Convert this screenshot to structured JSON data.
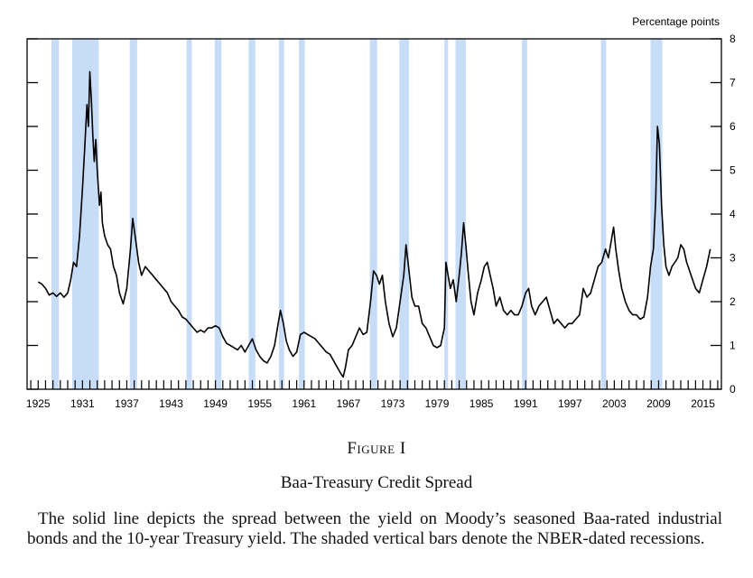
{
  "chart_data": {
    "type": "line",
    "ylabel": "Percentage points",
    "ylim": [
      0,
      8
    ],
    "yticks": [
      0,
      1,
      2,
      3,
      4,
      5,
      6,
      7,
      8
    ],
    "xlim": [
      1923.5,
      2017.5
    ],
    "xticks": [
      1925,
      1931,
      1937,
      1943,
      1949,
      1955,
      1961,
      1967,
      1973,
      1979,
      1985,
      1991,
      1997,
      2003,
      2009,
      2015
    ],
    "recession_color": "#c6dcf7",
    "line_color": "#000000",
    "recessions": [
      [
        1926.8,
        1927.8
      ],
      [
        1929.6,
        1933.2
      ],
      [
        1937.4,
        1938.4
      ],
      [
        1945.1,
        1945.8
      ],
      [
        1948.9,
        1949.8
      ],
      [
        1953.5,
        1954.4
      ],
      [
        1957.6,
        1958.3
      ],
      [
        1960.3,
        1961.1
      ],
      [
        1969.9,
        1970.9
      ],
      [
        1973.9,
        1975.2
      ],
      [
        1980.0,
        1980.5
      ],
      [
        1981.5,
        1982.9
      ],
      [
        1990.5,
        1991.2
      ],
      [
        2001.2,
        2001.9
      ],
      [
        2007.9,
        2009.5
      ]
    ],
    "series": [
      {
        "values": [
          [
            1925.0,
            2.45
          ],
          [
            1925.5,
            2.4
          ],
          [
            1926.0,
            2.3
          ],
          [
            1926.5,
            2.15
          ],
          [
            1927.0,
            2.2
          ],
          [
            1927.5,
            2.12
          ],
          [
            1928.0,
            2.2
          ],
          [
            1928.5,
            2.1
          ],
          [
            1929.0,
            2.2
          ],
          [
            1929.4,
            2.5
          ],
          [
            1929.8,
            2.9
          ],
          [
            1930.2,
            2.8
          ],
          [
            1930.6,
            3.5
          ],
          [
            1931.0,
            4.6
          ],
          [
            1931.3,
            5.5
          ],
          [
            1931.6,
            6.5
          ],
          [
            1931.8,
            6.0
          ],
          [
            1932.0,
            7.25
          ],
          [
            1932.2,
            6.6
          ],
          [
            1932.4,
            5.8
          ],
          [
            1932.6,
            5.2
          ],
          [
            1932.8,
            5.7
          ],
          [
            1933.0,
            5.0
          ],
          [
            1933.3,
            4.2
          ],
          [
            1933.5,
            4.5
          ],
          [
            1933.7,
            3.8
          ],
          [
            1934.0,
            3.5
          ],
          [
            1934.4,
            3.3
          ],
          [
            1934.8,
            3.2
          ],
          [
            1935.2,
            2.8
          ],
          [
            1935.6,
            2.6
          ],
          [
            1936.0,
            2.2
          ],
          [
            1936.5,
            1.95
          ],
          [
            1937.0,
            2.3
          ],
          [
            1937.5,
            3.2
          ],
          [
            1937.8,
            3.9
          ],
          [
            1938.2,
            3.4
          ],
          [
            1938.6,
            2.9
          ],
          [
            1939.0,
            2.6
          ],
          [
            1939.5,
            2.8
          ],
          [
            1940.0,
            2.7
          ],
          [
            1940.5,
            2.6
          ],
          [
            1941.0,
            2.5
          ],
          [
            1941.5,
            2.4
          ],
          [
            1942.0,
            2.3
          ],
          [
            1942.5,
            2.2
          ],
          [
            1943.0,
            2.0
          ],
          [
            1943.5,
            1.9
          ],
          [
            1944.0,
            1.8
          ],
          [
            1944.5,
            1.65
          ],
          [
            1945.0,
            1.6
          ],
          [
            1945.5,
            1.5
          ],
          [
            1946.0,
            1.4
          ],
          [
            1946.5,
            1.3
          ],
          [
            1947.0,
            1.35
          ],
          [
            1947.5,
            1.3
          ],
          [
            1948.0,
            1.4
          ],
          [
            1948.5,
            1.4
          ],
          [
            1949.0,
            1.45
          ],
          [
            1949.5,
            1.4
          ],
          [
            1950.0,
            1.2
          ],
          [
            1950.5,
            1.05
          ],
          [
            1951.0,
            1.0
          ],
          [
            1951.5,
            0.95
          ],
          [
            1952.0,
            0.9
          ],
          [
            1952.5,
            1.0
          ],
          [
            1953.0,
            0.85
          ],
          [
            1953.5,
            1.0
          ],
          [
            1954.0,
            1.15
          ],
          [
            1954.5,
            0.9
          ],
          [
            1955.0,
            0.75
          ],
          [
            1955.5,
            0.65
          ],
          [
            1956.0,
            0.6
          ],
          [
            1956.5,
            0.75
          ],
          [
            1957.0,
            1.0
          ],
          [
            1957.5,
            1.5
          ],
          [
            1957.8,
            1.8
          ],
          [
            1958.2,
            1.5
          ],
          [
            1958.6,
            1.1
          ],
          [
            1959.0,
            0.9
          ],
          [
            1959.5,
            0.75
          ],
          [
            1960.0,
            0.85
          ],
          [
            1960.5,
            1.25
          ],
          [
            1961.0,
            1.3
          ],
          [
            1961.5,
            1.25
          ],
          [
            1962.0,
            1.2
          ],
          [
            1962.5,
            1.15
          ],
          [
            1963.0,
            1.05
          ],
          [
            1963.5,
            0.95
          ],
          [
            1964.0,
            0.85
          ],
          [
            1964.5,
            0.8
          ],
          [
            1965.0,
            0.65
          ],
          [
            1965.5,
            0.5
          ],
          [
            1966.0,
            0.35
          ],
          [
            1966.3,
            0.28
          ],
          [
            1966.6,
            0.5
          ],
          [
            1967.0,
            0.9
          ],
          [
            1967.5,
            1.0
          ],
          [
            1968.0,
            1.2
          ],
          [
            1968.5,
            1.4
          ],
          [
            1969.0,
            1.25
          ],
          [
            1969.5,
            1.3
          ],
          [
            1970.0,
            2.0
          ],
          [
            1970.4,
            2.7
          ],
          [
            1970.8,
            2.6
          ],
          [
            1971.2,
            2.4
          ],
          [
            1971.6,
            2.6
          ],
          [
            1972.0,
            2.0
          ],
          [
            1972.5,
            1.5
          ],
          [
            1973.0,
            1.2
          ],
          [
            1973.5,
            1.4
          ],
          [
            1974.0,
            2.0
          ],
          [
            1974.5,
            2.6
          ],
          [
            1974.8,
            3.3
          ],
          [
            1975.2,
            2.7
          ],
          [
            1975.6,
            2.1
          ],
          [
            1976.0,
            1.9
          ],
          [
            1976.5,
            1.9
          ],
          [
            1977.0,
            1.5
          ],
          [
            1977.5,
            1.4
          ],
          [
            1978.0,
            1.2
          ],
          [
            1978.5,
            1.0
          ],
          [
            1979.0,
            0.95
          ],
          [
            1979.5,
            1.0
          ],
          [
            1980.0,
            1.4
          ],
          [
            1980.2,
            2.9
          ],
          [
            1980.5,
            2.6
          ],
          [
            1980.8,
            2.3
          ],
          [
            1981.2,
            2.5
          ],
          [
            1981.6,
            2.0
          ],
          [
            1982.0,
            2.6
          ],
          [
            1982.3,
            3.1
          ],
          [
            1982.6,
            3.8
          ],
          [
            1982.9,
            3.3
          ],
          [
            1983.2,
            2.7
          ],
          [
            1983.6,
            2.0
          ],
          [
            1984.0,
            1.7
          ],
          [
            1984.5,
            2.2
          ],
          [
            1985.0,
            2.5
          ],
          [
            1985.4,
            2.8
          ],
          [
            1985.8,
            2.9
          ],
          [
            1986.2,
            2.6
          ],
          [
            1986.6,
            2.3
          ],
          [
            1987.0,
            1.9
          ],
          [
            1987.5,
            2.1
          ],
          [
            1988.0,
            1.8
          ],
          [
            1988.5,
            1.7
          ],
          [
            1989.0,
            1.8
          ],
          [
            1989.5,
            1.7
          ],
          [
            1990.0,
            1.7
          ],
          [
            1990.5,
            1.9
          ],
          [
            1991.0,
            2.2
          ],
          [
            1991.4,
            2.3
          ],
          [
            1991.8,
            1.9
          ],
          [
            1992.3,
            1.7
          ],
          [
            1992.8,
            1.9
          ],
          [
            1993.3,
            2.0
          ],
          [
            1993.8,
            2.1
          ],
          [
            1994.3,
            1.8
          ],
          [
            1994.8,
            1.5
          ],
          [
            1995.3,
            1.6
          ],
          [
            1995.8,
            1.5
          ],
          [
            1996.3,
            1.4
          ],
          [
            1996.8,
            1.5
          ],
          [
            1997.3,
            1.5
          ],
          [
            1997.8,
            1.6
          ],
          [
            1998.3,
            1.7
          ],
          [
            1998.8,
            2.3
          ],
          [
            1999.3,
            2.1
          ],
          [
            1999.8,
            2.2
          ],
          [
            2000.3,
            2.5
          ],
          [
            2000.8,
            2.8
          ],
          [
            2001.3,
            2.9
          ],
          [
            2001.8,
            3.2
          ],
          [
            2002.2,
            3.0
          ],
          [
            2002.6,
            3.4
          ],
          [
            2002.9,
            3.7
          ],
          [
            2003.2,
            3.2
          ],
          [
            2003.6,
            2.7
          ],
          [
            2004.0,
            2.3
          ],
          [
            2004.5,
            2.0
          ],
          [
            2005.0,
            1.8
          ],
          [
            2005.5,
            1.7
          ],
          [
            2006.0,
            1.7
          ],
          [
            2006.5,
            1.6
          ],
          [
            2007.0,
            1.65
          ],
          [
            2007.5,
            2.1
          ],
          [
            2007.9,
            2.8
          ],
          [
            2008.3,
            3.2
          ],
          [
            2008.6,
            4.3
          ],
          [
            2008.85,
            6.0
          ],
          [
            2009.1,
            5.6
          ],
          [
            2009.4,
            4.2
          ],
          [
            2009.7,
            3.3
          ],
          [
            2010.0,
            2.8
          ],
          [
            2010.4,
            2.6
          ],
          [
            2010.8,
            2.8
          ],
          [
            2011.2,
            2.9
          ],
          [
            2011.6,
            3.0
          ],
          [
            2012.0,
            3.3
          ],
          [
            2012.4,
            3.2
          ],
          [
            2012.8,
            2.9
          ],
          [
            2013.2,
            2.7
          ],
          [
            2013.6,
            2.5
          ],
          [
            2014.0,
            2.3
          ],
          [
            2014.5,
            2.2
          ],
          [
            2015.0,
            2.5
          ],
          [
            2015.5,
            2.8
          ],
          [
            2016.0,
            3.2
          ]
        ]
      }
    ]
  },
  "figure": {
    "label": "Figure I",
    "title": "Baa-Treasury Credit Spread",
    "description": "The solid line depicts the spread between the yield on Moody’s seasoned Baa-rated industrial bonds and the 10-year Treasury yield. The shaded vertical bars denote the NBER-dated recessions."
  }
}
